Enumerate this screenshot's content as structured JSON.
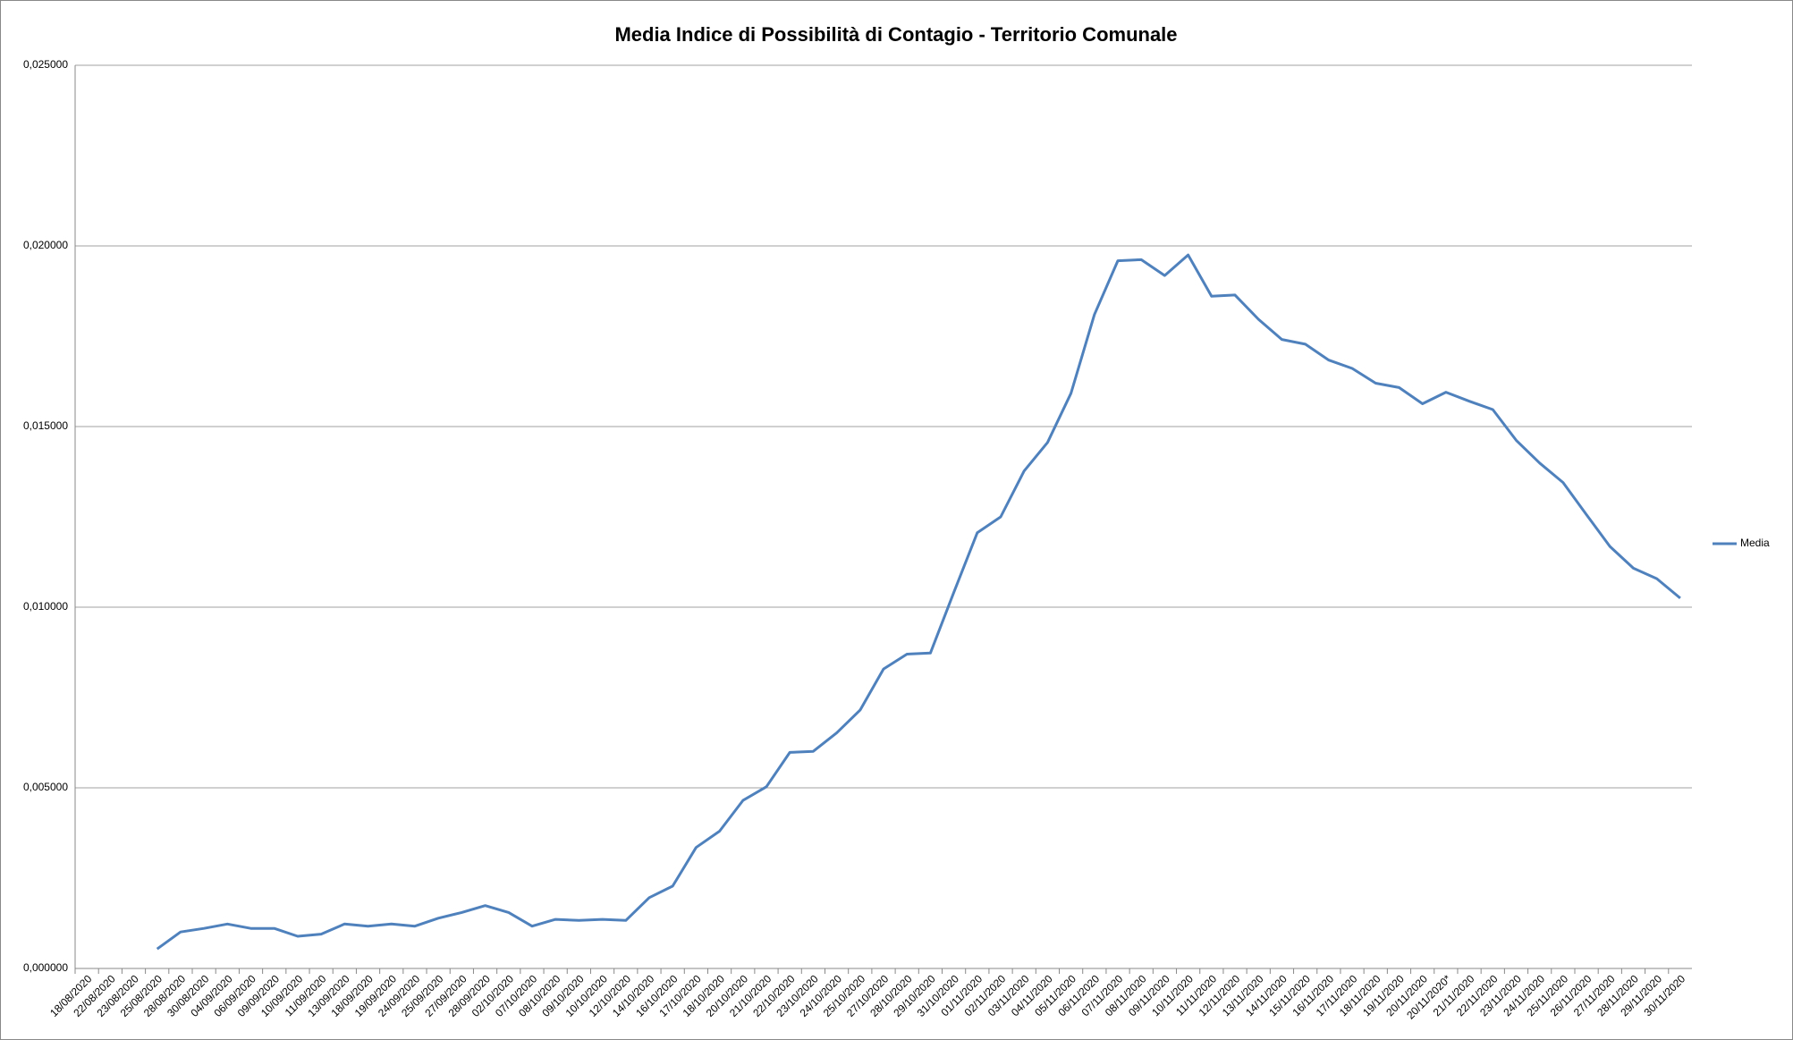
{
  "chart_data": {
    "type": "line",
    "title": "Media Indice di Possibilità di Contagio - Territorio Comunale",
    "categories": [
      "18/08/2020",
      "22/08/2020",
      "23/08/2020",
      "25/08/2020",
      "28/08/2020",
      "30/08/2020",
      "04/09/2020",
      "06/09/2020",
      "09/09/2020",
      "10/09/2020",
      "11/09/2020",
      "13/09/2020",
      "18/09/2020",
      "19/09/2020",
      "24/09/2020",
      "25/09/2020",
      "27/09/2020",
      "28/09/2020",
      "02/10/2020",
      "07/10/2020",
      "08/10/2020",
      "09/10/2020",
      "10/10/2020",
      "12/10/2020",
      "14/10/2020",
      "16/10/2020",
      "17/10/2020",
      "18/10/2020",
      "20/10/2020",
      "21/10/2020",
      "22/10/2020",
      "23/10/2020",
      "24/10/2020",
      "25/10/2020",
      "27/10/2020",
      "28/10/2020",
      "29/10/2020",
      "31/10/2020",
      "01/11/2020",
      "02/11/2020",
      "03/11/2020",
      "04/11/2020",
      "05/11/2020",
      "06/11/2020",
      "07/11/2020",
      "08/11/2020",
      "09/11/2020",
      "10/11/2020",
      "11/11/2020",
      "12/11/2020",
      "13/11/2020",
      "14/11/2020",
      "15/11/2020",
      "16/11/2020",
      "17/11/2020",
      "18/11/2020",
      "19/11/2020",
      "20/11/2020",
      "20/11/2020*",
      "21/11/2020",
      "22/11/2020",
      "23/11/2020",
      "24/11/2020",
      "25/11/2020",
      "26/11/2020",
      "27/11/2020",
      "28/11/2020",
      "29/11/2020",
      "30/11/2020"
    ],
    "series": [
      {
        "name": "Media",
        "color": "#4f81bd",
        "values": [
          null,
          null,
          null,
          0.00054,
          0.00101,
          0.00111,
          0.00123,
          0.00111,
          0.00111,
          0.00089,
          0.00095,
          0.00123,
          0.00117,
          0.00123,
          0.00117,
          0.00139,
          0.00155,
          0.00174,
          0.00155,
          0.00117,
          0.00136,
          0.00133,
          0.00136,
          0.00133,
          0.00196,
          0.00228,
          0.00335,
          0.0038,
          0.00465,
          0.00503,
          0.00598,
          0.00601,
          0.00652,
          0.00715,
          0.00829,
          0.0087,
          0.00873,
          0.01041,
          0.01206,
          0.0125,
          0.01377,
          0.01456,
          0.01592,
          0.0181,
          0.01959,
          0.01962,
          0.01918,
          0.01975,
          0.01861,
          0.01864,
          0.01797,
          0.01741,
          0.01728,
          0.01684,
          0.01661,
          0.0162,
          0.01608,
          0.01563,
          0.01595,
          0.0157,
          0.01547,
          0.01462,
          0.01399,
          0.01345,
          0.01256,
          0.01168,
          0.01108,
          0.01079,
          0.01025
        ]
      }
    ],
    "ylim": [
      0,
      0.025
    ],
    "yticks": [
      {
        "value": 0,
        "label": "0,000000"
      },
      {
        "value": 0.005,
        "label": "0,005000"
      },
      {
        "value": 0.01,
        "label": "0,010000"
      },
      {
        "value": 0.015,
        "label": "0,015000"
      },
      {
        "value": 0.02,
        "label": "0,020000"
      },
      {
        "value": 0.025,
        "label": "0,025000"
      }
    ],
    "grid": true,
    "legend": "right"
  }
}
